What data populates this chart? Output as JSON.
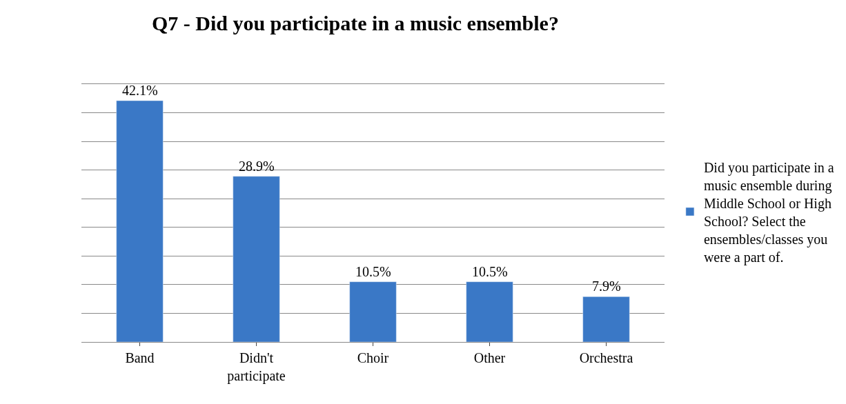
{
  "chart_data": {
    "type": "bar",
    "title": "Q7 - Did you participate in a music ensemble?",
    "categories": [
      "Band",
      "Didn't participate",
      "Choir",
      "Other",
      "Orchestra"
    ],
    "series": [
      {
        "name": "Did you participate in a music ensemble during Middle School or High School? Select the ensembles/classes you were a part of.",
        "color": "#3a78c6",
        "values": [
          42.1,
          28.9,
          10.5,
          10.5,
          7.9
        ],
        "value_labels": [
          "42.1%",
          "28.9%",
          "10.5%",
          "10.5%",
          "7.9%"
        ]
      }
    ],
    "grid": "y",
    "legend": "right",
    "tick_labels": "x"
  }
}
